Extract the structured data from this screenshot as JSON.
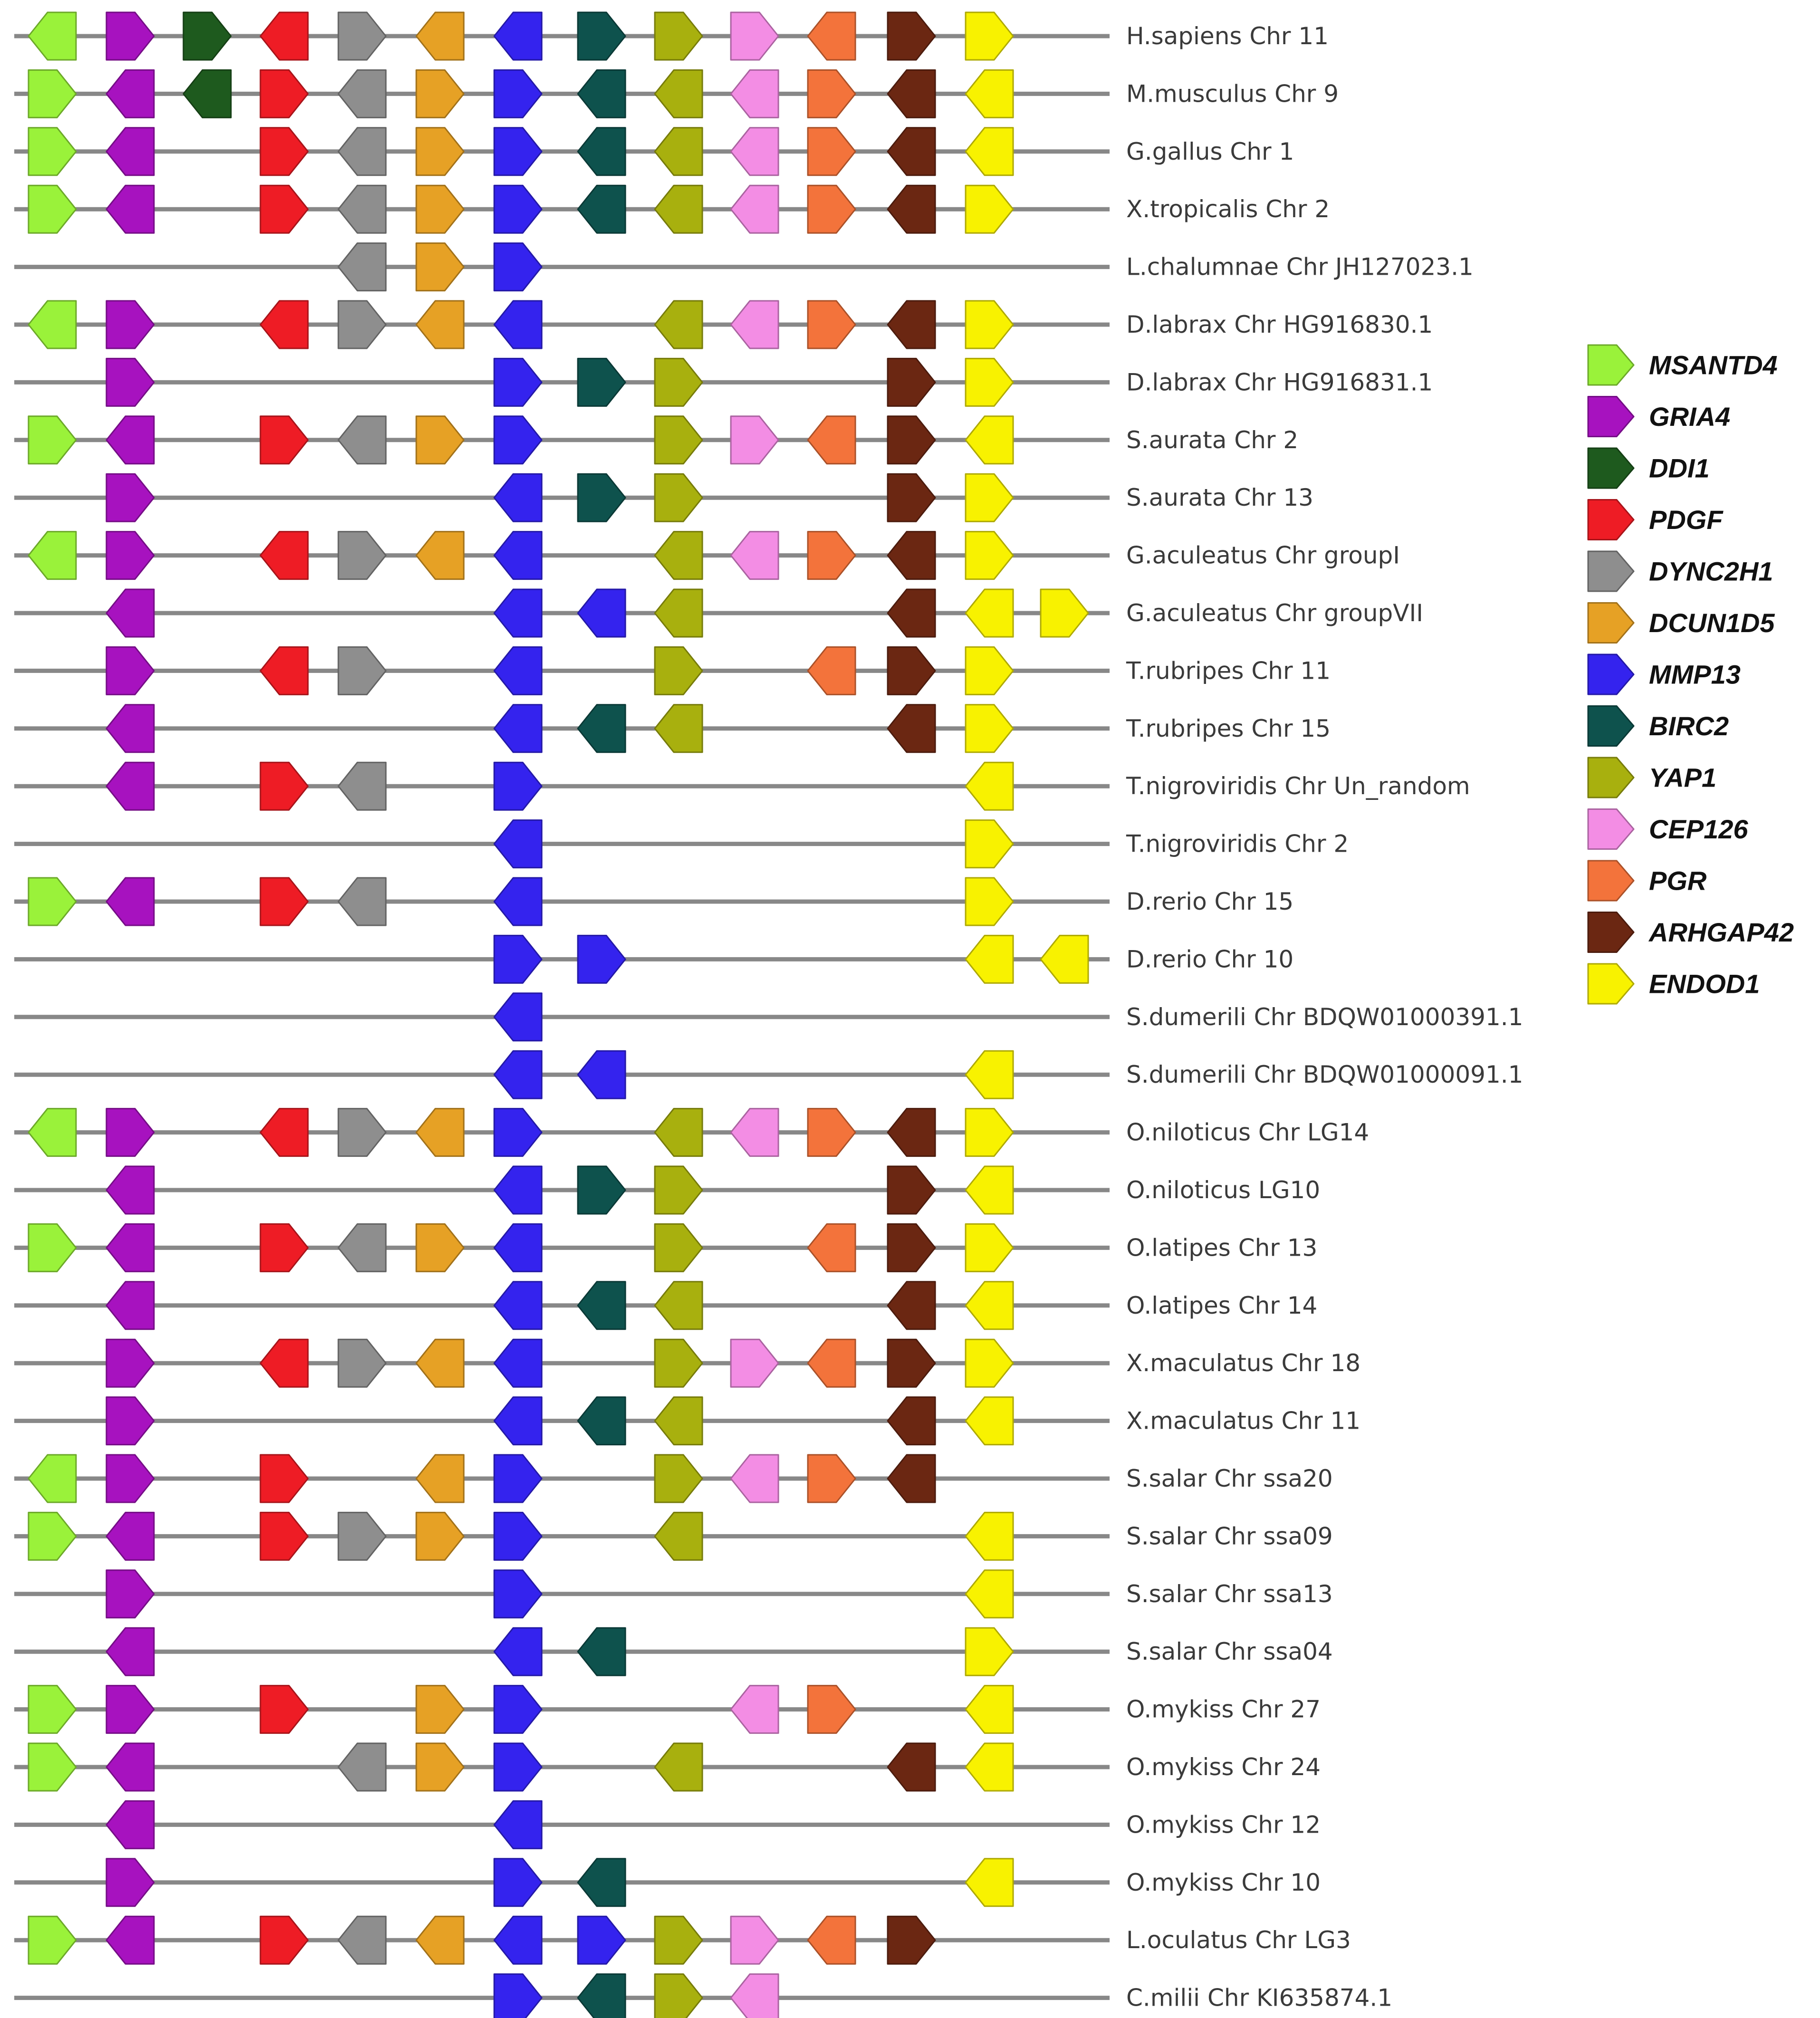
{
  "genes": [
    {
      "name": "MSANTD4",
      "color": "#9AF23A"
    },
    {
      "name": "GRIA4",
      "color": "#A712BF"
    },
    {
      "name": "DDI1",
      "color": "#1E5A1E"
    },
    {
      "name": "PDGF",
      "color": "#EE1C25"
    },
    {
      "name": "DYNC2H1",
      "color": "#8E8E8E"
    },
    {
      "name": "DCUN1D5",
      "color": "#E6A125"
    },
    {
      "name": "MMP13",
      "color": "#3423EE"
    },
    {
      "name": "BIRC2",
      "color": "#0E524D"
    },
    {
      "name": "YAP1",
      "color": "#A8B00E"
    },
    {
      "name": "CEP126",
      "color": "#F38DE4"
    },
    {
      "name": "PGR",
      "color": "#F3733B"
    },
    {
      "name": "ARHGAP42",
      "color": "#6B2712"
    },
    {
      "name": "ENDOD1",
      "color": "#F8F200"
    }
  ],
  "rows": [
    {
      "label": "H.sapiens Chr 11",
      "genes": [
        {
          "g": "MSANTD4",
          "d": "L"
        },
        {
          "g": "GRIA4",
          "d": "R"
        },
        {
          "g": "DDI1",
          "d": "R"
        },
        {
          "g": "PDGF",
          "d": "L"
        },
        {
          "g": "DYNC2H1",
          "d": "R"
        },
        {
          "g": "DCUN1D5",
          "d": "L"
        },
        {
          "g": "MMP13",
          "d": "L"
        },
        {
          "g": "BIRC2",
          "d": "R"
        },
        {
          "g": "YAP1",
          "d": "R"
        },
        {
          "g": "CEP126",
          "d": "R"
        },
        {
          "g": "PGR",
          "d": "L"
        },
        {
          "g": "ARHGAP42",
          "d": "R"
        },
        {
          "g": "ENDOD1",
          "d": "R"
        }
      ]
    },
    {
      "label": "M.musculus Chr 9",
      "genes": [
        {
          "g": "MSANTD4",
          "d": "R"
        },
        {
          "g": "GRIA4",
          "d": "L"
        },
        {
          "g": "DDI1",
          "d": "L"
        },
        {
          "g": "PDGF",
          "d": "R"
        },
        {
          "g": "DYNC2H1",
          "d": "L"
        },
        {
          "g": "DCUN1D5",
          "d": "R"
        },
        {
          "g": "MMP13",
          "d": "R"
        },
        {
          "g": "BIRC2",
          "d": "L"
        },
        {
          "g": "YAP1",
          "d": "L"
        },
        {
          "g": "CEP126",
          "d": "L"
        },
        {
          "g": "PGR",
          "d": "R"
        },
        {
          "g": "ARHGAP42",
          "d": "L"
        },
        {
          "g": "ENDOD1",
          "d": "L"
        }
      ]
    },
    {
      "label": "G.gallus Chr 1",
      "genes": [
        {
          "g": "MSANTD4",
          "d": "R"
        },
        {
          "g": "GRIA4",
          "d": "L"
        },
        {
          "g": "PDGF",
          "d": "R"
        },
        {
          "g": "DYNC2H1",
          "d": "L"
        },
        {
          "g": "DCUN1D5",
          "d": "R"
        },
        {
          "g": "MMP13",
          "d": "R"
        },
        {
          "g": "BIRC2",
          "d": "L"
        },
        {
          "g": "YAP1",
          "d": "L"
        },
        {
          "g": "CEP126",
          "d": "L"
        },
        {
          "g": "PGR",
          "d": "R"
        },
        {
          "g": "ARHGAP42",
          "d": "L"
        },
        {
          "g": "ENDOD1",
          "d": "L"
        }
      ]
    },
    {
      "label": "X.tropicalis Chr 2",
      "genes": [
        {
          "g": "MSANTD4",
          "d": "R"
        },
        {
          "g": "GRIA4",
          "d": "L"
        },
        {
          "g": "PDGF",
          "d": "R"
        },
        {
          "g": "DYNC2H1",
          "d": "L"
        },
        {
          "g": "DCUN1D5",
          "d": "R"
        },
        {
          "g": "MMP13",
          "d": "R"
        },
        {
          "g": "BIRC2",
          "d": "L"
        },
        {
          "g": "YAP1",
          "d": "L"
        },
        {
          "g": "CEP126",
          "d": "L"
        },
        {
          "g": "PGR",
          "d": "R"
        },
        {
          "g": "ARHGAP42",
          "d": "L"
        },
        {
          "g": "ENDOD1",
          "d": "R"
        }
      ]
    },
    {
      "label": "L.chalumnae Chr JH127023.1",
      "genes": [
        {
          "g": "DYNC2H1",
          "d": "L"
        },
        {
          "g": "DCUN1D5",
          "d": "R"
        },
        {
          "g": "MMP13",
          "d": "R"
        }
      ]
    },
    {
      "label": "D.labrax Chr HG916830.1",
      "genes": [
        {
          "g": "MSANTD4",
          "d": "L"
        },
        {
          "g": "GRIA4",
          "d": "R"
        },
        {
          "g": "PDGF",
          "d": "L"
        },
        {
          "g": "DYNC2H1",
          "d": "R"
        },
        {
          "g": "DCUN1D5",
          "d": "L"
        },
        {
          "g": "MMP13",
          "d": "L"
        },
        {
          "g": "YAP1",
          "d": "L"
        },
        {
          "g": "CEP126",
          "d": "L"
        },
        {
          "g": "PGR",
          "d": "R"
        },
        {
          "g": "ARHGAP42",
          "d": "L"
        },
        {
          "g": "ENDOD1",
          "d": "R"
        }
      ]
    },
    {
      "label": "D.labrax Chr HG916831.1",
      "genes": [
        {
          "g": "GRIA4",
          "d": "R"
        },
        {
          "g": "MMP13",
          "d": "R"
        },
        {
          "g": "BIRC2",
          "d": "R"
        },
        {
          "g": "YAP1",
          "d": "R"
        },
        {
          "g": "ARHGAP42",
          "d": "R"
        },
        {
          "g": "ENDOD1",
          "d": "R"
        }
      ]
    },
    {
      "label": "S.aurata Chr 2",
      "genes": [
        {
          "g": "MSANTD4",
          "d": "R"
        },
        {
          "g": "GRIA4",
          "d": "L"
        },
        {
          "g": "PDGF",
          "d": "R"
        },
        {
          "g": "DYNC2H1",
          "d": "L"
        },
        {
          "g": "DCUN1D5",
          "d": "R"
        },
        {
          "g": "MMP13",
          "d": "R"
        },
        {
          "g": "YAP1",
          "d": "R"
        },
        {
          "g": "CEP126",
          "d": "R"
        },
        {
          "g": "PGR",
          "d": "L"
        },
        {
          "g": "ARHGAP42",
          "d": "R"
        },
        {
          "g": "ENDOD1",
          "d": "L"
        }
      ]
    },
    {
      "label": "S.aurata Chr 13",
      "genes": [
        {
          "g": "GRIA4",
          "d": "R"
        },
        {
          "g": "MMP13",
          "d": "L"
        },
        {
          "g": "BIRC2",
          "d": "R"
        },
        {
          "g": "YAP1",
          "d": "R"
        },
        {
          "g": "ARHGAP42",
          "d": "R"
        },
        {
          "g": "ENDOD1",
          "d": "R"
        }
      ]
    },
    {
      "label": "G.aculeatus Chr groupI",
      "genes": [
        {
          "g": "MSANTD4",
          "d": "L"
        },
        {
          "g": "GRIA4",
          "d": "R"
        },
        {
          "g": "PDGF",
          "d": "L"
        },
        {
          "g": "DYNC2H1",
          "d": "R"
        },
        {
          "g": "DCUN1D5",
          "d": "L"
        },
        {
          "g": "MMP13",
          "d": "L"
        },
        {
          "g": "YAP1",
          "d": "L"
        },
        {
          "g": "CEP126",
          "d": "L"
        },
        {
          "g": "PGR",
          "d": "R"
        },
        {
          "g": "ARHGAP42",
          "d": "L"
        },
        {
          "g": "ENDOD1",
          "d": "R"
        }
      ]
    },
    {
      "label": "G.aculeatus Chr groupVII",
      "genes": [
        {
          "g": "GRIA4",
          "d": "L"
        },
        {
          "g": "MMP13",
          "d": "L"
        },
        {
          "g": "MMP13",
          "d": "L",
          "slot": 7
        },
        {
          "g": "YAP1",
          "d": "L"
        },
        {
          "g": "ARHGAP42",
          "d": "L"
        },
        {
          "g": "ENDOD1",
          "d": "L"
        },
        {
          "g": "ENDOD1",
          "d": "R",
          "slot": 13
        }
      ]
    },
    {
      "label": "T.rubripes Chr 11",
      "genes": [
        {
          "g": "GRIA4",
          "d": "R"
        },
        {
          "g": "PDGF",
          "d": "L"
        },
        {
          "g": "DYNC2H1",
          "d": "R"
        },
        {
          "g": "MMP13",
          "d": "L"
        },
        {
          "g": "YAP1",
          "d": "R"
        },
        {
          "g": "PGR",
          "d": "L"
        },
        {
          "g": "ARHGAP42",
          "d": "R"
        },
        {
          "g": "ENDOD1",
          "d": "R"
        }
      ]
    },
    {
      "label": "T.rubripes Chr 15",
      "genes": [
        {
          "g": "GRIA4",
          "d": "L"
        },
        {
          "g": "MMP13",
          "d": "L"
        },
        {
          "g": "BIRC2",
          "d": "L"
        },
        {
          "g": "YAP1",
          "d": "L"
        },
        {
          "g": "ARHGAP42",
          "d": "L"
        },
        {
          "g": "ENDOD1",
          "d": "R"
        }
      ]
    },
    {
      "label": "T.nigroviridis Chr Un_random",
      "genes": [
        {
          "g": "GRIA4",
          "d": "L"
        },
        {
          "g": "PDGF",
          "d": "R"
        },
        {
          "g": "DYNC2H1",
          "d": "L"
        },
        {
          "g": "MMP13",
          "d": "R"
        },
        {
          "g": "ENDOD1",
          "d": "L"
        }
      ]
    },
    {
      "label": "T.nigroviridis Chr 2",
      "genes": [
        {
          "g": "MMP13",
          "d": "L"
        },
        {
          "g": "ENDOD1",
          "d": "R"
        }
      ]
    },
    {
      "label": "D.rerio Chr 15",
      "genes": [
        {
          "g": "MSANTD4",
          "d": "R"
        },
        {
          "g": "GRIA4",
          "d": "L"
        },
        {
          "g": "PDGF",
          "d": "R"
        },
        {
          "g": "DYNC2H1",
          "d": "L"
        },
        {
          "g": "MMP13",
          "d": "L"
        },
        {
          "g": "ENDOD1",
          "d": "R"
        }
      ]
    },
    {
      "label": "D.rerio Chr 10",
      "genes": [
        {
          "g": "MMP13",
          "d": "R"
        },
        {
          "g": "MMP13",
          "d": "R",
          "slot": 7
        },
        {
          "g": "ENDOD1",
          "d": "L"
        },
        {
          "g": "ENDOD1",
          "d": "L",
          "slot": 13
        }
      ]
    },
    {
      "label": "S.dumerili Chr BDQW01000391.1",
      "genes": [
        {
          "g": "MMP13",
          "d": "L"
        }
      ]
    },
    {
      "label": "S.dumerili Chr BDQW01000091.1",
      "genes": [
        {
          "g": "MMP13",
          "d": "L"
        },
        {
          "g": "MMP13",
          "d": "L",
          "slot": 7
        },
        {
          "g": "ENDOD1",
          "d": "L"
        }
      ]
    },
    {
      "label": "O.niloticus Chr LG14",
      "genes": [
        {
          "g": "MSANTD4",
          "d": "L"
        },
        {
          "g": "GRIA4",
          "d": "R"
        },
        {
          "g": "PDGF",
          "d": "L"
        },
        {
          "g": "DYNC2H1",
          "d": "R"
        },
        {
          "g": "DCUN1D5",
          "d": "L"
        },
        {
          "g": "MMP13",
          "d": "R"
        },
        {
          "g": "YAP1",
          "d": "L"
        },
        {
          "g": "CEP126",
          "d": "L"
        },
        {
          "g": "PGR",
          "d": "R"
        },
        {
          "g": "ARHGAP42",
          "d": "L"
        },
        {
          "g": "ENDOD1",
          "d": "R"
        }
      ]
    },
    {
      "label": "O.niloticus LG10",
      "genes": [
        {
          "g": "GRIA4",
          "d": "L"
        },
        {
          "g": "MMP13",
          "d": "L"
        },
        {
          "g": "BIRC2",
          "d": "R"
        },
        {
          "g": "YAP1",
          "d": "R"
        },
        {
          "g": "ARHGAP42",
          "d": "R"
        },
        {
          "g": "ENDOD1",
          "d": "L"
        }
      ]
    },
    {
      "label": "O.latipes Chr 13",
      "genes": [
        {
          "g": "MSANTD4",
          "d": "R"
        },
        {
          "g": "GRIA4",
          "d": "L"
        },
        {
          "g": "PDGF",
          "d": "R"
        },
        {
          "g": "DYNC2H1",
          "d": "L"
        },
        {
          "g": "DCUN1D5",
          "d": "R"
        },
        {
          "g": "MMP13",
          "d": "L"
        },
        {
          "g": "YAP1",
          "d": "R"
        },
        {
          "g": "PGR",
          "d": "L"
        },
        {
          "g": "ARHGAP42",
          "d": "R"
        },
        {
          "g": "ENDOD1",
          "d": "R"
        }
      ]
    },
    {
      "label": "O.latipes Chr 14",
      "genes": [
        {
          "g": "GRIA4",
          "d": "L"
        },
        {
          "g": "MMP13",
          "d": "L"
        },
        {
          "g": "BIRC2",
          "d": "L"
        },
        {
          "g": "YAP1",
          "d": "L"
        },
        {
          "g": "ARHGAP42",
          "d": "L"
        },
        {
          "g": "ENDOD1",
          "d": "L"
        }
      ]
    },
    {
      "label": "X.maculatus Chr 18",
      "genes": [
        {
          "g": "GRIA4",
          "d": "R"
        },
        {
          "g": "PDGF",
          "d": "L"
        },
        {
          "g": "DYNC2H1",
          "d": "R"
        },
        {
          "g": "DCUN1D5",
          "d": "L"
        },
        {
          "g": "MMP13",
          "d": "L"
        },
        {
          "g": "YAP1",
          "d": "R"
        },
        {
          "g": "CEP126",
          "d": "R"
        },
        {
          "g": "PGR",
          "d": "L"
        },
        {
          "g": "ARHGAP42",
          "d": "R"
        },
        {
          "g": "ENDOD1",
          "d": "R"
        }
      ]
    },
    {
      "label": "X.maculatus Chr 11",
      "genes": [
        {
          "g": "GRIA4",
          "d": "R"
        },
        {
          "g": "MMP13",
          "d": "L"
        },
        {
          "g": "BIRC2",
          "d": "L"
        },
        {
          "g": "YAP1",
          "d": "L"
        },
        {
          "g": "ARHGAP42",
          "d": "L"
        },
        {
          "g": "ENDOD1",
          "d": "L"
        }
      ]
    },
    {
      "label": "S.salar Chr ssa20",
      "genes": [
        {
          "g": "MSANTD4",
          "d": "L"
        },
        {
          "g": "GRIA4",
          "d": "R"
        },
        {
          "g": "PDGF",
          "d": "R"
        },
        {
          "g": "DCUN1D5",
          "d": "L"
        },
        {
          "g": "MMP13",
          "d": "R"
        },
        {
          "g": "YAP1",
          "d": "R"
        },
        {
          "g": "CEP126",
          "d": "L"
        },
        {
          "g": "PGR",
          "d": "R"
        },
        {
          "g": "ARHGAP42",
          "d": "L"
        }
      ]
    },
    {
      "label": "S.salar Chr ssa09",
      "genes": [
        {
          "g": "MSANTD4",
          "d": "R"
        },
        {
          "g": "GRIA4",
          "d": "L"
        },
        {
          "g": "PDGF",
          "d": "R"
        },
        {
          "g": "DYNC2H1",
          "d": "R"
        },
        {
          "g": "DCUN1D5",
          "d": "R"
        },
        {
          "g": "MMP13",
          "d": "R"
        },
        {
          "g": "YAP1",
          "d": "L"
        },
        {
          "g": "ENDOD1",
          "d": "L"
        }
      ]
    },
    {
      "label": "S.salar Chr ssa13",
      "genes": [
        {
          "g": "GRIA4",
          "d": "R"
        },
        {
          "g": "MMP13",
          "d": "R"
        },
        {
          "g": "ENDOD1",
          "d": "L"
        }
      ]
    },
    {
      "label": "S.salar Chr ssa04",
      "genes": [
        {
          "g": "GRIA4",
          "d": "L"
        },
        {
          "g": "MMP13",
          "d": "L"
        },
        {
          "g": "BIRC2",
          "d": "L"
        },
        {
          "g": "ENDOD1",
          "d": "R"
        }
      ]
    },
    {
      "label": "O.mykiss Chr 27",
      "genes": [
        {
          "g": "MSANTD4",
          "d": "R"
        },
        {
          "g": "GRIA4",
          "d": "R"
        },
        {
          "g": "PDGF",
          "d": "R"
        },
        {
          "g": "DCUN1D5",
          "d": "R"
        },
        {
          "g": "MMP13",
          "d": "R"
        },
        {
          "g": "CEP126",
          "d": "L"
        },
        {
          "g": "PGR",
          "d": "R"
        },
        {
          "g": "ENDOD1",
          "d": "L"
        }
      ]
    },
    {
      "label": "O.mykiss Chr 24",
      "genes": [
        {
          "g": "MSANTD4",
          "d": "R"
        },
        {
          "g": "GRIA4",
          "d": "L"
        },
        {
          "g": "DYNC2H1",
          "d": "L"
        },
        {
          "g": "DCUN1D5",
          "d": "R"
        },
        {
          "g": "MMP13",
          "d": "R"
        },
        {
          "g": "YAP1",
          "d": "L"
        },
        {
          "g": "ARHGAP42",
          "d": "L"
        },
        {
          "g": "ENDOD1",
          "d": "L"
        }
      ]
    },
    {
      "label": "O.mykiss Chr 12",
      "genes": [
        {
          "g": "GRIA4",
          "d": "L"
        },
        {
          "g": "MMP13",
          "d": "L"
        }
      ]
    },
    {
      "label": "O.mykiss Chr 10",
      "genes": [
        {
          "g": "GRIA4",
          "d": "R"
        },
        {
          "g": "MMP13",
          "d": "R"
        },
        {
          "g": "BIRC2",
          "d": "L"
        },
        {
          "g": "ENDOD1",
          "d": "L"
        }
      ]
    },
    {
      "label": "L.oculatus Chr LG3",
      "genes": [
        {
          "g": "MSANTD4",
          "d": "R"
        },
        {
          "g": "GRIA4",
          "d": "L"
        },
        {
          "g": "PDGF",
          "d": "R"
        },
        {
          "g": "DYNC2H1",
          "d": "L"
        },
        {
          "g": "DCUN1D5",
          "d": "L"
        },
        {
          "g": "MMP13",
          "d": "L"
        },
        {
          "g": "MMP13",
          "d": "R",
          "slot": 7
        },
        {
          "g": "YAP1",
          "d": "R"
        },
        {
          "g": "CEP126",
          "d": "R"
        },
        {
          "g": "PGR",
          "d": "L"
        },
        {
          "g": "ARHGAP42",
          "d": "R"
        }
      ]
    },
    {
      "label": "C.milii Chr KI635874.1",
      "genes": [
        {
          "g": "MMP13",
          "d": "R"
        },
        {
          "g": "BIRC2",
          "d": "L"
        },
        {
          "g": "YAP1",
          "d": "R"
        },
        {
          "g": "CEP126",
          "d": "L"
        }
      ]
    }
  ]
}
